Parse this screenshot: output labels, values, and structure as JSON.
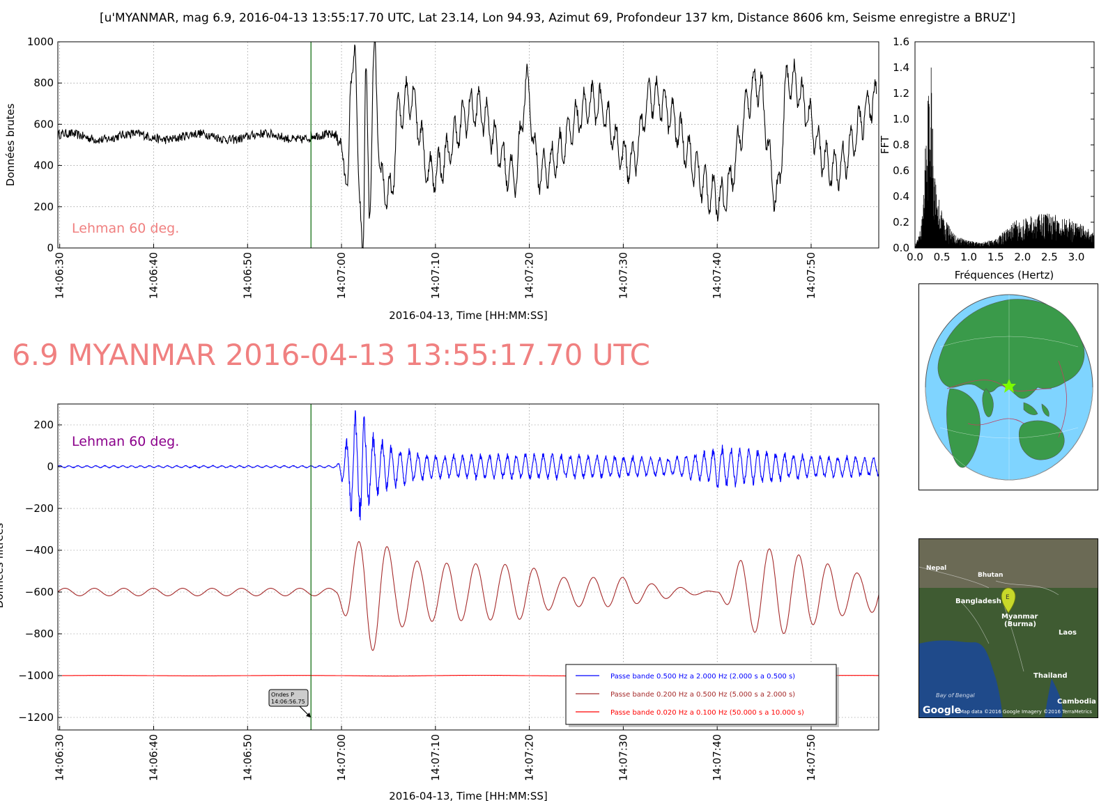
{
  "figure": {
    "super_title": "[u'MYANMAR, mag 6.9, 2016-04-13 13:55:17.70 UTC, Lat 23.14, Lon 94.93, Azimut  69, Profondeur 137 km, Distance  8606 km, Seisme enregistre a BRUZ']",
    "headline": "6.9 MYANMAR 2016-04-13 13:55:17.70 UTC"
  },
  "chart_data": [
    {
      "type": "line",
      "name": "raw",
      "title": "",
      "xlabel": "2016-04-13, Time [HH:MM:SS]",
      "ylabel": "Données brutes",
      "x_ticks": [
        "14:06:30",
        "14:06:40",
        "14:06:50",
        "14:07:00",
        "14:07:10",
        "14:07:20",
        "14:07:30",
        "14:07:40",
        "14:07:50"
      ],
      "xlim": [
        "14:06:29.8",
        "14:07:57.2"
      ],
      "y_ticks": [
        0,
        200,
        400,
        600,
        800,
        1000
      ],
      "ylim": [
        0,
        1000
      ],
      "grid": true,
      "annotation": "Lehman 60 deg.",
      "marker_time": "14:06:56.75",
      "baseline": 540,
      "noise_amp": 22,
      "series": [
        {
          "color": "#000000",
          "segments": [
            {
              "t": "14:06:56.75",
              "v": 545
            },
            {
              "t": "14:06:59.5",
              "v": 550
            },
            {
              "t": "14:07:00.7",
              "v": 330
            },
            {
              "t": "14:07:01.0",
              "v": 800
            },
            {
              "t": "14:07:01.4",
              "v": 980
            },
            {
              "t": "14:07:01.9",
              "v": 250
            },
            {
              "t": "14:07:02.3",
              "v": 0
            },
            {
              "t": "14:07:02.6",
              "v": 860
            },
            {
              "t": "14:07:03.0",
              "v": 170
            },
            {
              "t": "14:07:03.5",
              "v": 970
            },
            {
              "t": "14:07:04.2",
              "v": 320
            },
            {
              "t": "14:07:05.3",
              "v": 250
            },
            {
              "t": "14:07:06.0",
              "v": 650
            },
            {
              "t": "14:07:07.3",
              "v": 740
            },
            {
              "t": "14:07:09.5",
              "v": 360
            },
            {
              "t": "14:07:14.3",
              "v": 680
            },
            {
              "t": "14:07:18.5",
              "v": 350
            },
            {
              "t": "14:07:19.7",
              "v": 780
            },
            {
              "t": "14:07:21.0",
              "v": 370
            },
            {
              "t": "14:07:27.0",
              "v": 700
            },
            {
              "t": "14:07:30.8",
              "v": 410
            },
            {
              "t": "14:07:33.0",
              "v": 730
            },
            {
              "t": "14:07:40.4",
              "v": 240
            },
            {
              "t": "14:07:44.3",
              "v": 800
            },
            {
              "t": "14:07:46.4",
              "v": 250
            },
            {
              "t": "14:07:47.5",
              "v": 820
            },
            {
              "t": "14:07:52.5",
              "v": 380
            },
            {
              "t": "14:07:57.0",
              "v": 720
            }
          ]
        }
      ]
    },
    {
      "type": "area",
      "name": "fft",
      "xlabel": "Fréquences (Hertz)",
      "ylabel": "FFT",
      "x_ticks": [
        0.0,
        0.5,
        1.0,
        1.5,
        2.0,
        2.5,
        3.0
      ],
      "xlim": [
        0,
        3.33
      ],
      "y_ticks": [
        0.0,
        0.2,
        0.4,
        0.6,
        0.8,
        1.0,
        1.2,
        1.4,
        1.6
      ],
      "ylim": [
        0,
        1.6
      ],
      "peak_freq": 0.3,
      "peak_value": 1.4,
      "series": [
        {
          "color": "#000000",
          "envelope": [
            {
              "f": 0.0,
              "v": 0.02
            },
            {
              "f": 0.08,
              "v": 0.1
            },
            {
              "f": 0.15,
              "v": 0.3
            },
            {
              "f": 0.2,
              "v": 0.95
            },
            {
              "f": 0.25,
              "v": 1.3
            },
            {
              "f": 0.3,
              "v": 1.4
            },
            {
              "f": 0.35,
              "v": 0.75
            },
            {
              "f": 0.4,
              "v": 0.5
            },
            {
              "f": 0.5,
              "v": 0.3
            },
            {
              "f": 0.6,
              "v": 0.2
            },
            {
              "f": 0.7,
              "v": 0.12
            },
            {
              "f": 0.9,
              "v": 0.07
            },
            {
              "f": 1.2,
              "v": 0.04
            },
            {
              "f": 1.5,
              "v": 0.07
            },
            {
              "f": 1.7,
              "v": 0.15
            },
            {
              "f": 1.9,
              "v": 0.22
            },
            {
              "f": 2.2,
              "v": 0.26
            },
            {
              "f": 2.5,
              "v": 0.27
            },
            {
              "f": 2.8,
              "v": 0.24
            },
            {
              "f": 3.1,
              "v": 0.18
            },
            {
              "f": 3.33,
              "v": 0.12
            }
          ]
        }
      ]
    },
    {
      "type": "line",
      "name": "filtered",
      "xlabel": "2016-04-13, Time [HH:MM:SS]",
      "ylabel": "Données filtrées",
      "x_ticks": [
        "14:06:30",
        "14:06:40",
        "14:06:50",
        "14:07:00",
        "14:07:10",
        "14:07:20",
        "14:07:30",
        "14:07:40",
        "14:07:50"
      ],
      "xlim": [
        "14:06:29.8",
        "14:07:57.2"
      ],
      "y_ticks": [
        200,
        0,
        -200,
        -400,
        -600,
        -800,
        -1000,
        -1200
      ],
      "ylim": [
        -1260,
        300
      ],
      "grid": true,
      "annotation": "Lehman 60 deg.",
      "marker_time": "14:06:56.75",
      "callout": {
        "line1": "Ondes P",
        "line2": "14:06:56.75"
      },
      "legend": {
        "position": "lower-right",
        "entries": [
          {
            "label": "Passe bande 0.500 Hz a 2.000 Hz (2.000 s a 0.500 s)",
            "color": "#0000ff"
          },
          {
            "label": "Passe bande 0.200 Hz a 0.500 Hz (5.000 s a 2.000 s)",
            "color": "#a52a2a"
          },
          {
            "label": "Passe bande 0.020 Hz a 0.100 Hz (50.000 s a 10.000 s)",
            "color": "#ff0000"
          }
        ]
      },
      "series": [
        {
          "color": "#0000ff",
          "offset": 0,
          "pre_amp": 6,
          "peaks": [
            {
              "t": "14:07:00.2",
              "v": 95
            },
            {
              "t": "14:07:00.9",
              "v": -220
            },
            {
              "t": "14:07:01.7",
              "v": 305
            },
            {
              "t": "14:07:02.4",
              "v": -260
            },
            {
              "t": "14:07:03.0",
              "v": 190
            },
            {
              "t": "14:07:03.8",
              "v": 150
            },
            {
              "t": "14:07:05.5",
              "v": 110
            },
            {
              "t": "14:07:10.0",
              "v": 60
            },
            {
              "t": "14:07:20.0",
              "v": 70
            },
            {
              "t": "14:07:35.0",
              "v": 50
            },
            {
              "t": "14:07:39.5",
              "v": 90
            },
            {
              "t": "14:07:40.0",
              "v": -110
            },
            {
              "t": "14:07:50.0",
              "v": 60
            },
            {
              "t": "14:07:57.0",
              "v": 50
            }
          ]
        },
        {
          "color": "#a52a2a",
          "offset": -600,
          "pre_amp": 18,
          "peaks": [
            {
              "t": "14:07:01.0",
              "v": -410
            },
            {
              "t": "14:07:02.6",
              "v": -890
            },
            {
              "t": "14:07:04.0",
              "v": -330
            },
            {
              "t": "14:07:05.5",
              "v": -780
            },
            {
              "t": "14:07:07.7",
              "v": -450
            },
            {
              "t": "14:07:09.7",
              "v": -740
            },
            {
              "t": "14:07:19.6",
              "v": -470
            },
            {
              "t": "14:07:23.0",
              "v": -530
            },
            {
              "t": "14:07:30.0",
              "v": -670
            },
            {
              "t": "14:07:33.0",
              "v": -560
            },
            {
              "t": "14:07:40.0",
              "v": -600
            },
            {
              "t": "14:07:42.6",
              "v": -440
            },
            {
              "t": "14:07:44.3",
              "v": -400
            },
            {
              "t": "14:07:46.2",
              "v": -810
            },
            {
              "t": "14:07:47.8",
              "v": -410
            },
            {
              "t": "14:07:55.0",
              "v": -690
            },
            {
              "t": "14:07:57.0",
              "v": -500
            }
          ]
        },
        {
          "color": "#ff0000",
          "offset": -1000,
          "pre_amp": 1,
          "peaks": [
            {
              "t": "14:07:05.0",
              "v": -998
            },
            {
              "t": "14:07:30.0",
              "v": -1001
            }
          ]
        }
      ]
    }
  ],
  "globe": {
    "epicenter_lat": 23.14,
    "epicenter_lon": 94.93,
    "ocean_color": "#7fd4ff",
    "land_color": "#3a9a4a",
    "star_color": "#7cfc00"
  },
  "map": {
    "labels": [
      "Nepal",
      "Bhutan",
      "Bangladesh",
      "Myanmar",
      "(Burma)",
      "Laos",
      "Thailand",
      "Bay of Bengal",
      "Cambodia"
    ],
    "marker_letter": "E",
    "logo": "Google",
    "attribution": "Map data ©2016 Google  Imagery ©2016 TerraMetrics"
  }
}
